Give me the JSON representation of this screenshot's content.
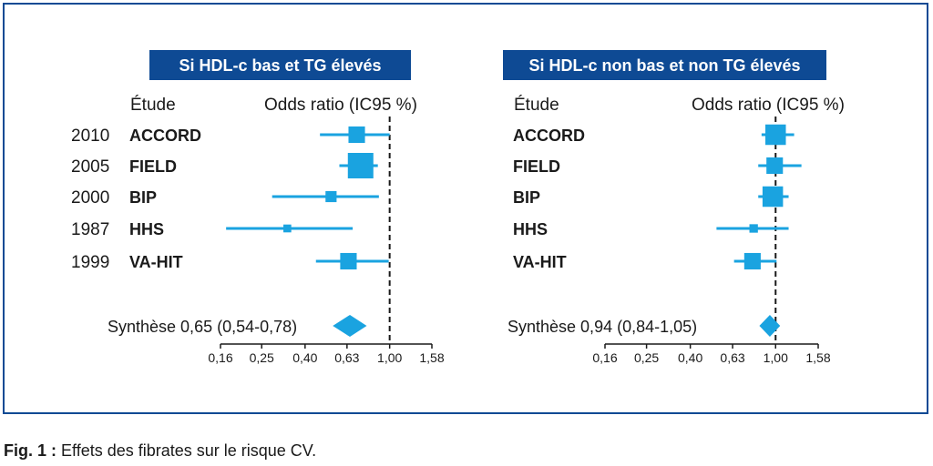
{
  "caption": {
    "label": "Fig. 1 :",
    "text": "Effets des fibrates sur le risque CV."
  },
  "colors": {
    "frame": "#0e4a94",
    "title_bg": "#0e4a94",
    "marker": "#1aa3e0",
    "axis": "#1a1a1a"
  },
  "chart_data": [
    {
      "type": "forest",
      "title": "Si HDL-c bas et TG élevés",
      "col_study": "Étude",
      "col_effect": "Odds ratio (IC95 %)",
      "x_scale": "log",
      "xlim": [
        0.16,
        1.58
      ],
      "xticks": [
        0.16,
        0.25,
        0.4,
        0.63,
        1.0,
        1.58
      ],
      "tick_labels": [
        "0,16",
        "0,25",
        "0,40",
        "0,63",
        "1,00",
        "1,58"
      ],
      "reference_line": 1.0,
      "studies": [
        {
          "year": "2010",
          "name": "ACCORD",
          "or": 0.7,
          "ci": [
            0.47,
            1.0
          ],
          "weight": 0.55
        },
        {
          "year": "2005",
          "name": "FIELD",
          "or": 0.73,
          "ci": [
            0.58,
            0.88
          ],
          "weight": 1.0
        },
        {
          "year": "2000",
          "name": "BIP",
          "or": 0.53,
          "ci": [
            0.28,
            0.89
          ],
          "weight": 0.28
        },
        {
          "year": "1987",
          "name": "HHS",
          "or": 0.33,
          "ci": [
            0.17,
            0.67
          ],
          "weight": 0.12
        },
        {
          "year": "1999",
          "name": "VA-HIT",
          "or": 0.64,
          "ci": [
            0.45,
            0.99
          ],
          "weight": 0.55
        }
      ],
      "summary": {
        "label": "Synthèse 0,65 (0,54-0,78)",
        "or": 0.65,
        "ci": [
          0.54,
          0.78
        ]
      }
    },
    {
      "type": "forest",
      "title": "Si HDL-c non bas et non TG élevés",
      "col_study": "Étude",
      "col_effect": "Odds ratio (IC95 %)",
      "x_scale": "log",
      "xlim": [
        0.16,
        1.58
      ],
      "xticks": [
        0.16,
        0.25,
        0.4,
        0.63,
        1.0,
        1.58
      ],
      "tick_labels": [
        "0,16",
        "0,25",
        "0,40",
        "0,63",
        "1,00",
        "1,58"
      ],
      "reference_line": 1.0,
      "studies": [
        {
          "year": "",
          "name": "ACCORD",
          "or": 1.0,
          "ci": [
            0.86,
            1.22
          ],
          "weight": 0.75
        },
        {
          "year": "",
          "name": "FIELD",
          "or": 0.99,
          "ci": [
            0.83,
            1.32
          ],
          "weight": 0.55
        },
        {
          "year": "",
          "name": "BIP",
          "or": 0.97,
          "ci": [
            0.83,
            1.15
          ],
          "weight": 0.75
        },
        {
          "year": "",
          "name": "HHS",
          "or": 0.79,
          "ci": [
            0.53,
            1.15
          ],
          "weight": 0.15
        },
        {
          "year": "",
          "name": "VA-HIT",
          "or": 0.78,
          "ci": [
            0.64,
            1.01
          ],
          "weight": 0.55
        }
      ],
      "summary": {
        "label": "Synthèse 0,94 (0,84-1,05)",
        "or": 0.94,
        "ci": [
          0.84,
          1.05
        ]
      }
    }
  ]
}
